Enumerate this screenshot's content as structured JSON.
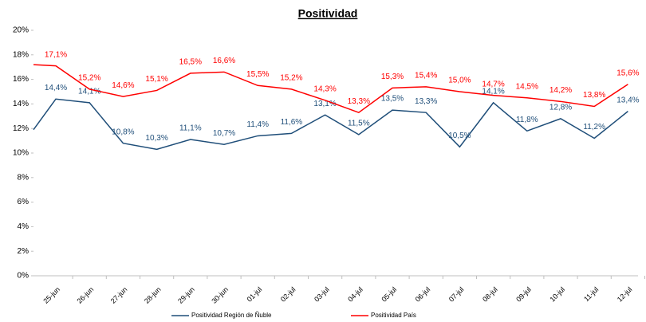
{
  "chart_data": {
    "type": "line",
    "title": "Positividad",
    "categories": [
      null,
      "25-jun",
      "26-jun",
      "27-jun",
      "28-jun",
      "29-jun",
      "30-jun",
      "01-jul",
      "02-jul",
      "03-jul",
      "04-jul",
      "05-jul",
      "06-jul",
      "07-jul",
      "08-jul",
      "09-jul",
      "10-jul",
      "11-jul",
      "12-jul"
    ],
    "series": [
      {
        "name": "Positividad Región de Ñuble",
        "color": "#1f4e79",
        "values": [
          11.9,
          14.4,
          14.1,
          10.8,
          10.3,
          11.1,
          10.7,
          11.4,
          11.6,
          13.1,
          11.5,
          13.5,
          13.3,
          10.5,
          14.1,
          11.8,
          12.8,
          11.2,
          13.4
        ],
        "value_labels": [
          null,
          "14,4%",
          "14,1%",
          "10,8%",
          "10,3%",
          "11,1%",
          "10,7%",
          "11,4%",
          "11,6%",
          "13,1%",
          "11,5%",
          "13,5%",
          "13,3%",
          "10,5%",
          "14,1%",
          "11,8%",
          "12,8%",
          "11,2%",
          "13,4%"
        ]
      },
      {
        "name": "Positividad País",
        "color": "#ff0000",
        "values": [
          17.2,
          17.1,
          15.2,
          14.6,
          15.1,
          16.5,
          16.6,
          15.5,
          15.2,
          14.3,
          13.3,
          15.3,
          15.4,
          15.0,
          14.7,
          14.5,
          14.2,
          13.8,
          15.6
        ],
        "value_labels": [
          null,
          "17,1%",
          "15,2%",
          "14,6%",
          "15,1%",
          "16,5%",
          "16,6%",
          "15,5%",
          "15,2%",
          "14,3%",
          "13,3%",
          "15,3%",
          "15,4%",
          "15,0%",
          "14,7%",
          "14,5%",
          "14,2%",
          "13,8%",
          "15,6%"
        ]
      }
    ],
    "ylim": [
      0,
      20
    ],
    "yticks": [
      {
        "value": 0,
        "label": "0%"
      },
      {
        "value": 2,
        "label": "2%"
      },
      {
        "value": 4,
        "label": "4%"
      },
      {
        "value": 6,
        "label": "6%"
      },
      {
        "value": 8,
        "label": "8%"
      },
      {
        "value": 10,
        "label": "10%"
      },
      {
        "value": 12,
        "label": "12%"
      },
      {
        "value": 14,
        "label": "14%"
      },
      {
        "value": 16,
        "label": "16%"
      },
      {
        "value": 18,
        "label": "18%"
      },
      {
        "value": 20,
        "label": "20%"
      }
    ],
    "legend": "bottom"
  }
}
